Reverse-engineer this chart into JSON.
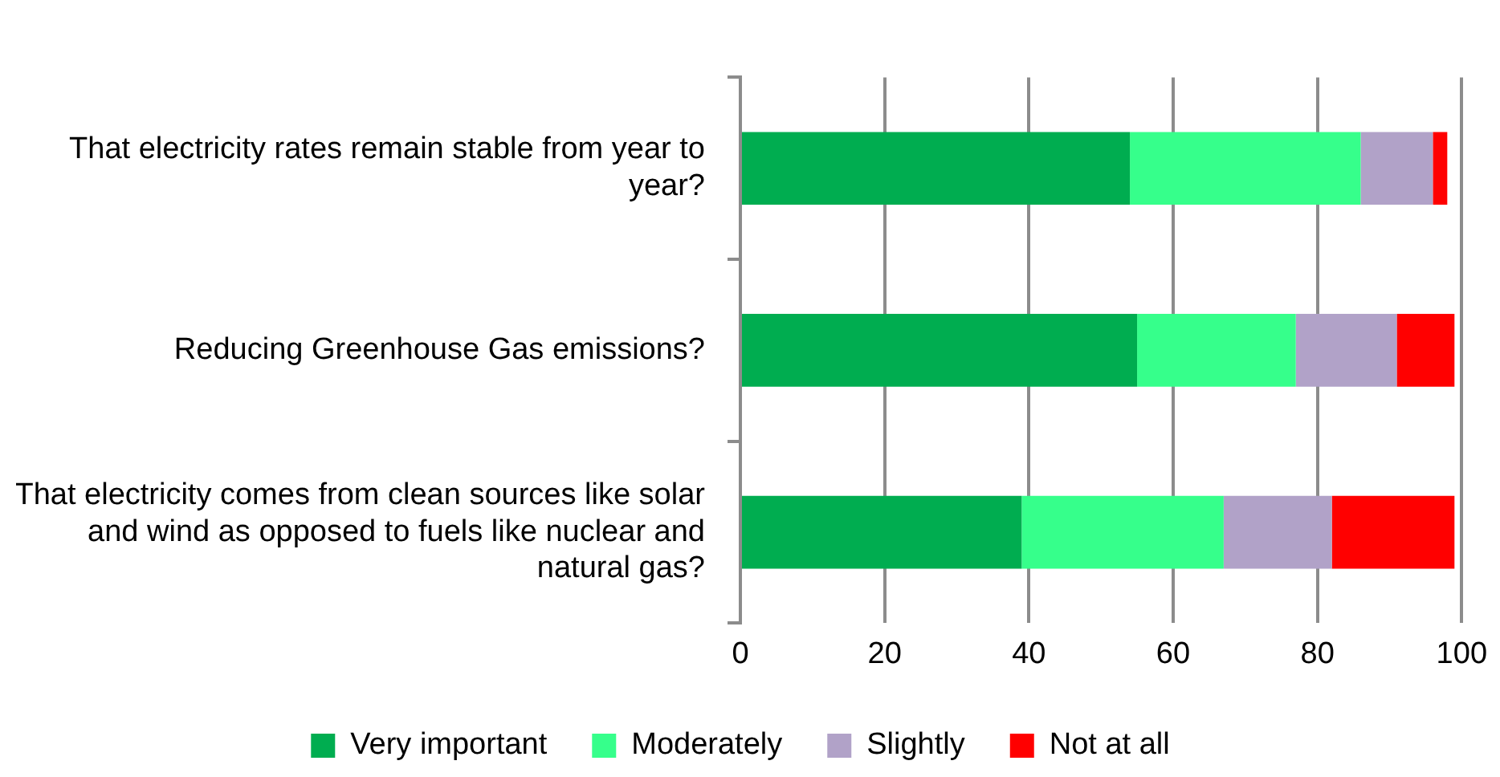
{
  "chart_data": {
    "type": "bar",
    "orientation": "horizontal",
    "stacked": true,
    "categories": [
      "That electricity rates remain stable from year to year?",
      "Reducing Greenhouse Gas emissions?",
      "That electricity comes from clean sources like solar and wind as opposed to fuels like nuclear and natural gas?"
    ],
    "series": [
      {
        "name": "Very important",
        "color": "#00ad50",
        "values": [
          54,
          55,
          39
        ]
      },
      {
        "name": "Moderately",
        "color": "#36ff8b",
        "values": [
          32,
          22,
          28
        ]
      },
      {
        "name": "Slightly",
        "color": "#b1a2c8",
        "values": [
          10,
          14,
          15
        ]
      },
      {
        "name": "Not at all",
        "color": "#ff0000",
        "values": [
          2,
          8,
          17
        ]
      }
    ],
    "xlim": [
      0,
      100
    ],
    "xticks": [
      0,
      20,
      40,
      60,
      80,
      100
    ],
    "grid": "x",
    "legend": "bottom"
  }
}
